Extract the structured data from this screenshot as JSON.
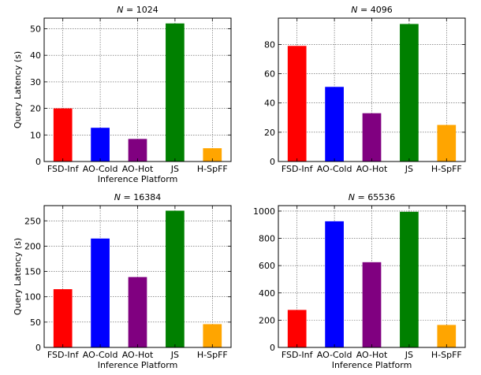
{
  "chart_data": [
    {
      "type": "bar",
      "title": "N = 1024",
      "title_var": "N",
      "title_value": "1024",
      "categories": [
        "FSD-Inf",
        "AO-Cold",
        "AO-Hot",
        "JS",
        "H-SpFF"
      ],
      "values": [
        20,
        12.7,
        8.5,
        52,
        5
      ],
      "colors": [
        "#ff0000",
        "#0000ff",
        "#800080",
        "#008000",
        "#ffa500"
      ],
      "xlabel": "Inference Platform",
      "ylabel": "Query Latency (s)",
      "ylim": [
        0,
        54
      ],
      "yticks": [
        0,
        10,
        20,
        30,
        40,
        50
      ],
      "grid": true
    },
    {
      "type": "bar",
      "title": "N = 4096",
      "title_var": "N",
      "title_value": "4096",
      "categories": [
        "FSD-Inf",
        "AO-Cold",
        "AO-Hot",
        "JS",
        "H-SpFF"
      ],
      "values": [
        79,
        51,
        33,
        94,
        25
      ],
      "colors": [
        "#ff0000",
        "#0000ff",
        "#800080",
        "#008000",
        "#ffa500"
      ],
      "xlabel": "",
      "ylabel": "",
      "ylim": [
        0,
        98
      ],
      "yticks": [
        0,
        20,
        40,
        60,
        80
      ],
      "grid": true
    },
    {
      "type": "bar",
      "title": "N = 16384",
      "title_var": "N",
      "title_value": "16384",
      "categories": [
        "FSD-Inf",
        "AO-Cold",
        "AO-Hot",
        "JS",
        "H-SpFF"
      ],
      "values": [
        115,
        215,
        139,
        270,
        46
      ],
      "colors": [
        "#ff0000",
        "#0000ff",
        "#800080",
        "#008000",
        "#ffa500"
      ],
      "xlabel": "Inference Platform",
      "ylabel": "Query Latency (s)",
      "ylim": [
        0,
        280
      ],
      "yticks": [
        0,
        50,
        100,
        150,
        200,
        250
      ],
      "grid": true
    },
    {
      "type": "bar",
      "title": "N = 65536",
      "title_var": "N",
      "title_value": "65536",
      "categories": [
        "FSD-Inf",
        "AO-Cold",
        "AO-Hot",
        "JS",
        "H-SpFF"
      ],
      "values": [
        275,
        925,
        625,
        995,
        165
      ],
      "colors": [
        "#ff0000",
        "#0000ff",
        "#800080",
        "#008000",
        "#ffa500"
      ],
      "xlabel": "Inference Platform",
      "ylabel": "",
      "ylim": [
        0,
        1040
      ],
      "yticks": [
        0,
        200,
        400,
        600,
        800,
        1000
      ],
      "grid": true
    }
  ]
}
